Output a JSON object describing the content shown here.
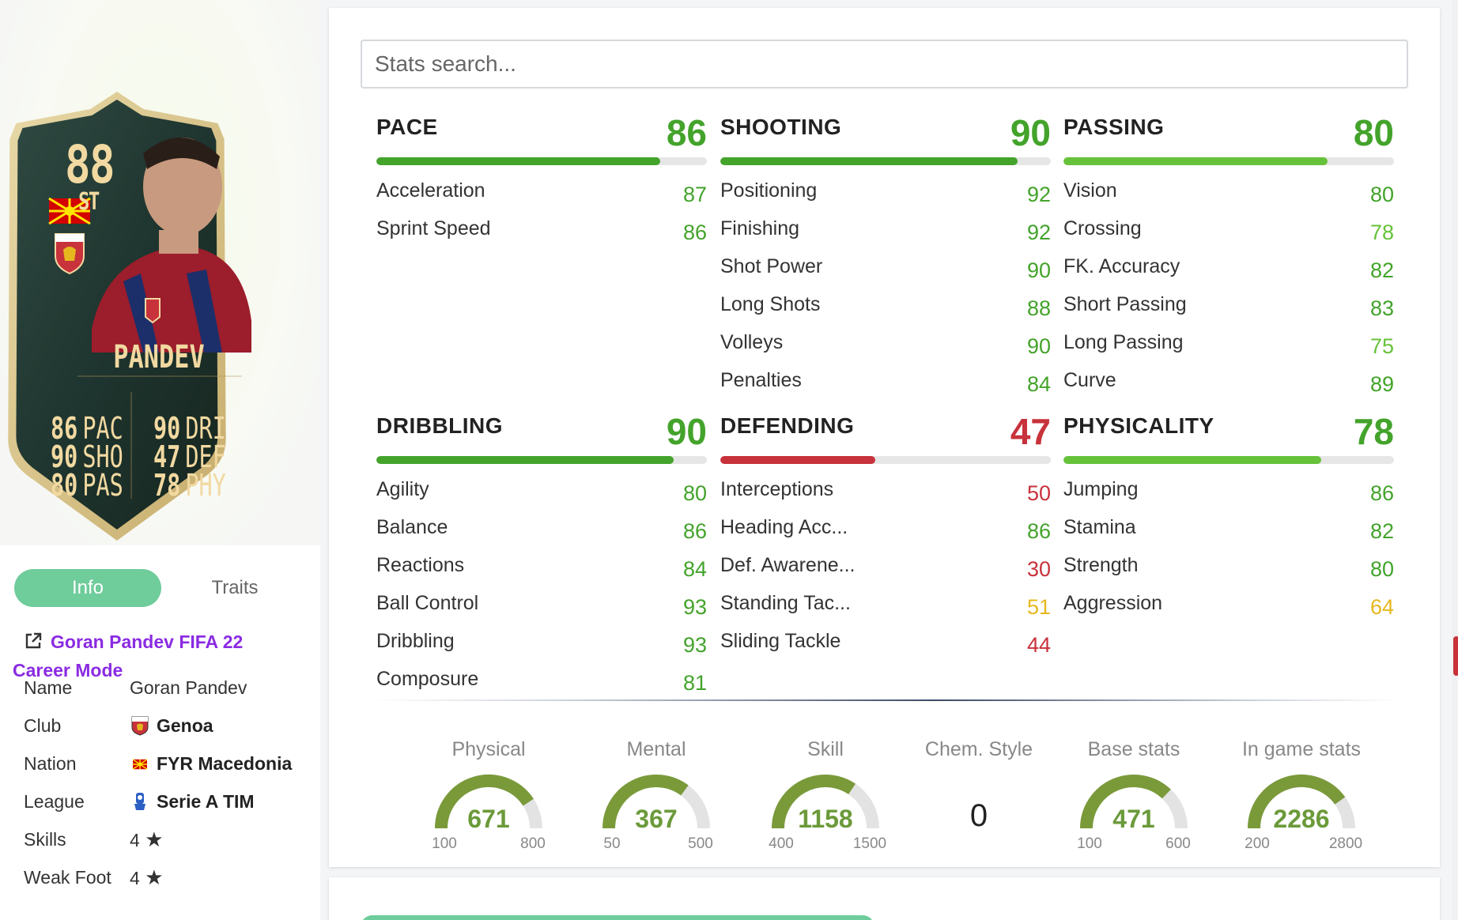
{
  "colors": {
    "high": "#43a32b",
    "good": "#66c23a",
    "mid": "#e6b81e",
    "low": "#c8323b",
    "accent_tab": "#6fcc9b",
    "link": "#8a2be2",
    "gauge": "#7a9a3a"
  },
  "card": {
    "rating": "88",
    "position": "ST",
    "name": "PANDEV",
    "flag_icon": "macedonia-flag-icon",
    "club_icon": "genoa-badge-icon",
    "stats": [
      {
        "value": "86",
        "label": "PAC"
      },
      {
        "value": "90",
        "label": "SHO"
      },
      {
        "value": "80",
        "label": "PAS"
      },
      {
        "value": "90",
        "label": "DRI"
      },
      {
        "value": "47",
        "label": "DEF"
      },
      {
        "value": "78",
        "label": "PHY"
      }
    ]
  },
  "tabs": {
    "info": "Info",
    "traits": "Traits"
  },
  "player_link": {
    "line1": "Goran Pandev FIFA 22",
    "line2": "Career Mode",
    "icon": "external-link-icon"
  },
  "info": {
    "name": {
      "label": "Name",
      "value": "Goran Pandev"
    },
    "club": {
      "label": "Club",
      "value": "Genoa",
      "icon": "genoa-badge-icon"
    },
    "nation": {
      "label": "Nation",
      "value": "FYR Macedonia",
      "icon": "macedonia-flag-icon"
    },
    "league": {
      "label": "League",
      "value": "Serie A TIM",
      "icon": "serie-a-logo-icon"
    },
    "skills": {
      "label": "Skills",
      "value": "4",
      "icon": "star-icon"
    },
    "weak_foot": {
      "label": "Weak Foot",
      "value": "4",
      "icon": "star-icon"
    }
  },
  "search": {
    "placeholder": "Stats search..."
  },
  "categories": [
    {
      "name": "PACE",
      "value": 86,
      "subs": [
        {
          "name": "Acceleration",
          "value": 87
        },
        {
          "name": "Sprint Speed",
          "value": 86
        }
      ]
    },
    {
      "name": "SHOOTING",
      "value": 90,
      "subs": [
        {
          "name": "Positioning",
          "value": 92
        },
        {
          "name": "Finishing",
          "value": 92
        },
        {
          "name": "Shot Power",
          "value": 90
        },
        {
          "name": "Long Shots",
          "value": 88
        },
        {
          "name": "Volleys",
          "value": 90
        },
        {
          "name": "Penalties",
          "value": 84
        }
      ]
    },
    {
      "name": "PASSING",
      "value": 80,
      "subs": [
        {
          "name": "Vision",
          "value": 80
        },
        {
          "name": "Crossing",
          "value": 78
        },
        {
          "name": "FK. Accuracy",
          "value": 82
        },
        {
          "name": "Short Passing",
          "value": 83
        },
        {
          "name": "Long Passing",
          "value": 75
        },
        {
          "name": "Curve",
          "value": 89
        }
      ]
    },
    {
      "name": "DRIBBLING",
      "value": 90,
      "subs": [
        {
          "name": "Agility",
          "value": 80
        },
        {
          "name": "Balance",
          "value": 86
        },
        {
          "name": "Reactions",
          "value": 84
        },
        {
          "name": "Ball Control",
          "value": 93
        },
        {
          "name": "Dribbling",
          "value": 93
        },
        {
          "name": "Composure",
          "value": 81
        }
      ]
    },
    {
      "name": "DEFENDING",
      "value": 47,
      "subs": [
        {
          "name": "Interceptions",
          "value": 50
        },
        {
          "name": "Heading Acc...",
          "value": 86
        },
        {
          "name": "Def. Awarene...",
          "value": 30
        },
        {
          "name": "Standing Tac...",
          "value": 51
        },
        {
          "name": "Sliding Tackle",
          "value": 44
        }
      ]
    },
    {
      "name": "PHYSICALITY",
      "value": 78,
      "subs": [
        {
          "name": "Jumping",
          "value": 86
        },
        {
          "name": "Stamina",
          "value": 82
        },
        {
          "name": "Strength",
          "value": 80
        },
        {
          "name": "Aggression",
          "value": 64
        }
      ]
    }
  ],
  "gauges": [
    {
      "title": "Physical",
      "value": 671,
      "min": 100,
      "max": 800
    },
    {
      "title": "Mental",
      "value": 367,
      "min": 50,
      "max": 500
    },
    {
      "title": "Skill",
      "value": 1158,
      "min": 400,
      "max": 1500
    },
    {
      "title": "Chem. Style",
      "value": 0,
      "plain": true
    },
    {
      "title": "Base stats",
      "value": 471,
      "min": 100,
      "max": 600
    },
    {
      "title": "In game stats",
      "value": 2286,
      "min": 200,
      "max": 2800
    }
  ]
}
